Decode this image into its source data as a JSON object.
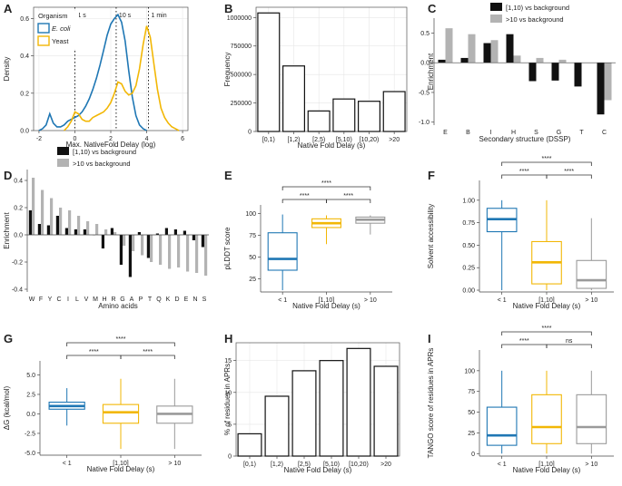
{
  "colors": {
    "blue": "#1f77b4",
    "yellow": "#f2b705",
    "gray": "#9a9a9a",
    "black": "#111111",
    "lightgray": "#b3b3b3"
  },
  "chart_data": [
    {
      "letter": "A",
      "type": "line",
      "title": "",
      "xlabel": "Max. NativeFold Delay (log)",
      "ylabel": "Density",
      "xlim": [
        -2.3,
        6.3
      ],
      "ylim": [
        0,
        0.66
      ],
      "xticks": [
        "-2",
        "0",
        "2",
        "4",
        "6"
      ],
      "xtick_values": [
        -2,
        0,
        2,
        4,
        6
      ],
      "yticks": [
        "0.0",
        "0.2",
        "0.4",
        "0.6"
      ],
      "ytick_values": [
        0,
        0.2,
        0.4,
        0.6
      ],
      "legend_title": "Organism",
      "series": [
        {
          "name": "E. coli",
          "color_key": "blue",
          "x": [
            -2.0,
            -1.8,
            -1.6,
            -1.4,
            -1.2,
            -1.0,
            -0.8,
            -0.6,
            -0.4,
            -0.2,
            0.0,
            0.2,
            0.4,
            0.6,
            0.8,
            1.0,
            1.2,
            1.4,
            1.6,
            1.8,
            2.0,
            2.2,
            2.4,
            2.6,
            2.8,
            3.0,
            3.2,
            3.4,
            3.6,
            3.8,
            4.0
          ],
          "y": [
            0.0,
            0.01,
            0.03,
            0.09,
            0.04,
            0.02,
            0.02,
            0.03,
            0.05,
            0.06,
            0.07,
            0.08,
            0.1,
            0.13,
            0.17,
            0.22,
            0.28,
            0.35,
            0.43,
            0.51,
            0.57,
            0.6,
            0.62,
            0.58,
            0.48,
            0.32,
            0.18,
            0.08,
            0.03,
            0.01,
            0.0
          ]
        },
        {
          "name": "Yeast",
          "color_key": "yellow",
          "x": [
            -0.6,
            -0.4,
            -0.2,
            0.0,
            0.2,
            0.4,
            0.6,
            0.8,
            1.0,
            1.2,
            1.4,
            1.6,
            1.8,
            2.0,
            2.2,
            2.4,
            2.6,
            2.8,
            3.0,
            3.2,
            3.4,
            3.6,
            3.8,
            4.0,
            4.2,
            4.4,
            4.6,
            4.8,
            5.0,
            5.2,
            5.4,
            5.6,
            5.8
          ],
          "y": [
            0.0,
            0.02,
            0.05,
            0.1,
            0.09,
            0.06,
            0.05,
            0.05,
            0.07,
            0.08,
            0.09,
            0.1,
            0.12,
            0.15,
            0.2,
            0.26,
            0.25,
            0.21,
            0.19,
            0.2,
            0.24,
            0.33,
            0.46,
            0.56,
            0.5,
            0.36,
            0.22,
            0.12,
            0.07,
            0.04,
            0.02,
            0.01,
            0.0
          ]
        }
      ],
      "vlines": [
        {
          "x": 0.0,
          "label": "1 s"
        },
        {
          "x": 2.3,
          "label": "10 s"
        },
        {
          "x": 4.1,
          "label": "1 min"
        }
      ]
    },
    {
      "letter": "B",
      "type": "bar",
      "title": "",
      "xlabel": "Native Fold Delay (s)",
      "ylabel": "Frequency",
      "categories": [
        "[0,1)",
        "[1,2)",
        "[2,5)",
        "[5,10)",
        "[10,20)",
        ">20"
      ],
      "values": [
        1040000,
        575000,
        180000,
        285000,
        265000,
        350000
      ],
      "ylim": [
        0,
        1090000
      ],
      "yticks": [
        "0",
        "250000",
        "500000",
        "750000",
        "1000000"
      ],
      "ytick_values": [
        0,
        250000,
        500000,
        750000,
        1000000
      ]
    },
    {
      "letter": "C",
      "type": "bar",
      "title": "",
      "xlabel": "Secondary structure (DSSP)",
      "ylabel": "Enrichment",
      "categories": [
        "E",
        "B",
        "I",
        "H",
        "S",
        "G",
        "T",
        "C"
      ],
      "series": [
        {
          "name": "[1,10) vs background",
          "color_key": "black",
          "values": [
            0.05,
            0.08,
            0.33,
            0.48,
            -0.31,
            -0.3,
            -0.4,
            -0.87
          ]
        },
        {
          "name": ">10 vs background",
          "color_key": "lightgray",
          "values": [
            0.58,
            0.48,
            0.38,
            0.12,
            0.08,
            0.05,
            0.0,
            -0.63
          ]
        }
      ],
      "ylim": [
        -1.05,
        0.75
      ],
      "yticks": [
        "-1.0",
        "-0.5",
        "0.0",
        "0.5"
      ],
      "ytick_values": [
        -1,
        -0.5,
        0,
        0.5
      ]
    },
    {
      "letter": "D",
      "type": "bar",
      "title": "",
      "xlabel": "Amino acids",
      "ylabel": "Enrichment",
      "categories": [
        "W",
        "F",
        "Y",
        "C",
        "I",
        "L",
        "V",
        "M",
        "H",
        "R",
        "G",
        "A",
        "P",
        "T",
        "Q",
        "K",
        "D",
        "E",
        "N",
        "S"
      ],
      "series": [
        {
          "name": "[1,10) vs background",
          "color_key": "black",
          "values": [
            0.18,
            0.08,
            0.07,
            0.14,
            0.05,
            0.04,
            0.04,
            0.0,
            -0.1,
            0.05,
            -0.22,
            -0.31,
            0.02,
            -0.17,
            0.01,
            0.05,
            0.04,
            0.03,
            -0.04,
            -0.09
          ]
        },
        {
          "name": ">10 vs background",
          "color_key": "lightgray",
          "values": [
            0.42,
            0.33,
            0.27,
            0.2,
            0.18,
            0.14,
            0.1,
            0.08,
            0.04,
            0.02,
            -0.08,
            -0.12,
            -0.15,
            -0.2,
            -0.22,
            -0.25,
            -0.24,
            -0.27,
            -0.28,
            -0.3
          ]
        }
      ],
      "ylim": [
        -0.42,
        0.48
      ],
      "yticks": [
        "-0.4",
        "-0.2",
        "0.0",
        "0.2",
        "0.4"
      ],
      "ytick_values": [
        -0.4,
        -0.2,
        0,
        0.2,
        0.4
      ]
    },
    {
      "letter": "E",
      "type": "box",
      "title": "",
      "xlabel": "Native Fold Delay (s)",
      "ylabel": "pLDDT score",
      "categories": [
        "< 1",
        "[1,10]",
        "> 10"
      ],
      "boxes": [
        {
          "color_key": "blue",
          "whisker_low": 12,
          "q1": 35,
          "median": 48,
          "q3": 78,
          "whisker_high": 99
        },
        {
          "color_key": "yellow",
          "whisker_low": 65,
          "q1": 84,
          "median": 89,
          "q3": 94,
          "whisker_high": 98
        },
        {
          "color_key": "gray",
          "whisker_low": 76,
          "q1": 89,
          "median": 93,
          "q3": 96,
          "whisker_high": 98
        }
      ],
      "ylim": [
        10,
        110
      ],
      "yticks": [
        "25",
        "50",
        "75",
        "100"
      ],
      "ytick_values": [
        25,
        50,
        75,
        100
      ],
      "brackets": [
        {
          "from": 0,
          "to": 1,
          "label": "****",
          "level": 0
        },
        {
          "from": 1,
          "to": 2,
          "label": "****",
          "level": 0
        },
        {
          "from": 0,
          "to": 2,
          "label": "****",
          "level": 1
        }
      ]
    },
    {
      "letter": "F",
      "type": "box",
      "title": "",
      "xlabel": "Native Fold Delay (s)",
      "ylabel": "Solvent accessibility",
      "categories": [
        "< 1",
        "[1,10]",
        "> 10"
      ],
      "boxes": [
        {
          "color_key": "blue",
          "whisker_low": 0.0,
          "q1": 0.65,
          "median": 0.79,
          "q3": 0.91,
          "whisker_high": 1.0
        },
        {
          "color_key": "yellow",
          "whisker_low": 0.0,
          "q1": 0.07,
          "median": 0.31,
          "q3": 0.54,
          "whisker_high": 1.0
        },
        {
          "color_key": "gray",
          "whisker_low": 0.0,
          "q1": 0.02,
          "median": 0.11,
          "q3": 0.33,
          "whisker_high": 0.8
        }
      ],
      "ylim": [
        -0.02,
        1.22
      ],
      "yticks": [
        "0.00",
        "0.25",
        "0.50",
        "0.75",
        "1.00"
      ],
      "ytick_values": [
        0,
        0.25,
        0.5,
        0.75,
        1.0
      ],
      "brackets": [
        {
          "from": 0,
          "to": 1,
          "label": "****",
          "level": 0
        },
        {
          "from": 1,
          "to": 2,
          "label": "****",
          "level": 0
        },
        {
          "from": 0,
          "to": 2,
          "label": "****",
          "level": 1
        }
      ]
    },
    {
      "letter": "G",
      "type": "box",
      "title": "",
      "xlabel": "Native Fold Delay (s)",
      "ylabel": "ΔG (kcal/mol)",
      "categories": [
        "< 1",
        "[1,10]",
        "> 10"
      ],
      "boxes": [
        {
          "color_key": "blue",
          "whisker_low": -1.5,
          "q1": 0.6,
          "median": 1.0,
          "q3": 1.5,
          "whisker_high": 3.3
        },
        {
          "color_key": "yellow",
          "whisker_low": -4.5,
          "q1": -1.2,
          "median": 0.2,
          "q3": 1.2,
          "whisker_high": 4.5
        },
        {
          "color_key": "gray",
          "whisker_low": -4.5,
          "q1": -1.2,
          "median": 0.0,
          "q3": 1.0,
          "whisker_high": 4.5
        }
      ],
      "ylim": [
        -5.3,
        6.8
      ],
      "yticks": [
        "-5.0",
        "-2.5",
        "0.0",
        "2.5",
        "5.0"
      ],
      "ytick_values": [
        -5,
        -2.5,
        0,
        2.5,
        5
      ],
      "brackets": [
        {
          "from": 0,
          "to": 1,
          "label": "****",
          "level": 0
        },
        {
          "from": 1,
          "to": 2,
          "label": "****",
          "level": 0
        },
        {
          "from": 0,
          "to": 2,
          "label": "****",
          "level": 1
        }
      ]
    },
    {
      "letter": "H",
      "type": "bar",
      "title": "",
      "xlabel": "Native Fold Delay (s)",
      "ylabel": "% of residues in APRs",
      "categories": [
        "[0,1)",
        "[1,2)",
        "[2,5)",
        "[5,10)",
        "[10,20)",
        ">20"
      ],
      "values": [
        3.5,
        9.4,
        13.4,
        15.0,
        16.9,
        14.1
      ],
      "ylim": [
        0,
        17.8
      ],
      "yticks": [
        "0",
        "5",
        "10",
        "15"
      ],
      "ytick_values": [
        0,
        5,
        10,
        15
      ]
    },
    {
      "letter": "I",
      "type": "box",
      "title": "",
      "xlabel": "Native Fold Delay (s)",
      "ylabel": "TANGO score of residues in APRs",
      "categories": [
        "< 1",
        "[1,10]",
        "> 10"
      ],
      "boxes": [
        {
          "color_key": "blue",
          "whisker_low": 0,
          "q1": 10,
          "median": 22,
          "q3": 56,
          "whisker_high": 100
        },
        {
          "color_key": "yellow",
          "whisker_low": 0,
          "q1": 12,
          "median": 32,
          "q3": 71,
          "whisker_high": 100
        },
        {
          "color_key": "gray",
          "whisker_low": 0,
          "q1": 12,
          "median": 32,
          "q3": 71,
          "whisker_high": 100
        }
      ],
      "ylim": [
        -3,
        125
      ],
      "yticks": [
        "0",
        "25",
        "50",
        "75",
        "100"
      ],
      "ytick_values": [
        0,
        25,
        50,
        75,
        100
      ],
      "brackets": [
        {
          "from": 0,
          "to": 1,
          "label": "****",
          "level": 0
        },
        {
          "from": 1,
          "to": 2,
          "label": "ns",
          "level": 0
        },
        {
          "from": 0,
          "to": 2,
          "label": "****",
          "level": 1
        }
      ]
    }
  ]
}
